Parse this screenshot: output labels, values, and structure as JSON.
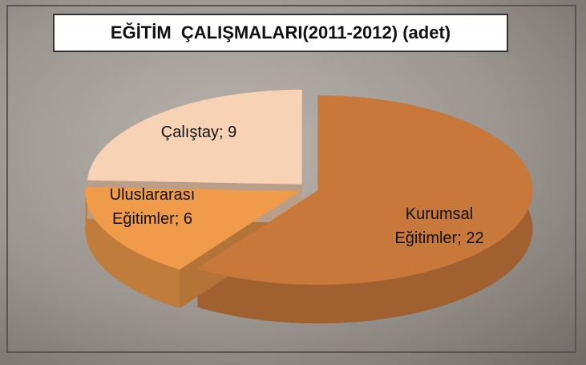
{
  "chart_data": {
    "type": "pie",
    "title": "EĞİTİM  ÇALIŞMALARI(2011-2012) (adet)",
    "values": [
      22,
      6,
      9
    ],
    "value_labels": [
      "Kurumsal Eğitimler; 22",
      "Uluslararası Eğitimler; 6",
      "Çalıştay; 9"
    ],
    "colors": [
      "#c9783b",
      "#f09b4a",
      "#f8d2b4"
    ]
  }
}
